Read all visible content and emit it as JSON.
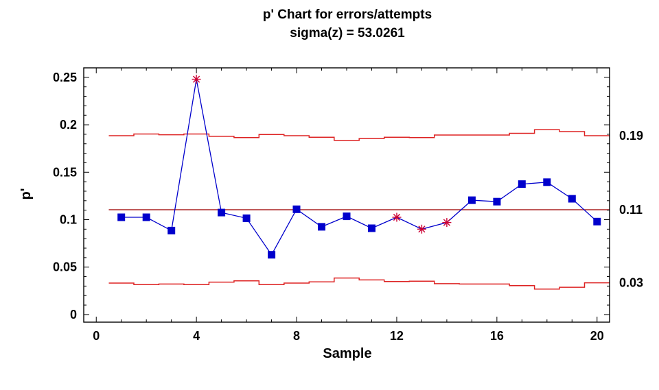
{
  "chart_data": {
    "type": "line",
    "title": "p' Chart for errors/attempts",
    "subtitle": "sigma(z) = 53.0261",
    "xlabel": "Sample",
    "ylabel": "p'",
    "xlim": [
      -0.5,
      20.5
    ],
    "ylim": [
      -0.008,
      0.26
    ],
    "x_ticks": [
      0,
      4,
      8,
      12,
      16,
      20
    ],
    "x_tick_labels": [
      "0",
      "4",
      "8",
      "12",
      "16",
      "20"
    ],
    "y_ticks": [
      0,
      0.05,
      0.1,
      0.15,
      0.2,
      0.25
    ],
    "y_tick_labels": [
      "0",
      "0.05",
      "0.1",
      "0.15",
      "0.2",
      "0.25"
    ],
    "grid": false,
    "center_line": 0.1105,
    "right_labels": [
      {
        "value": 0.1885,
        "text": "0.19"
      },
      {
        "value": 0.1105,
        "text": "0.11"
      },
      {
        "value": 0.0335,
        "text": "0.03"
      }
    ],
    "ucl": [
      0.1885,
      0.1903,
      0.1895,
      0.1903,
      0.1878,
      0.1865,
      0.1898,
      0.1885,
      0.1868,
      0.1835,
      0.1855,
      0.1868,
      0.1865,
      0.1892,
      0.1892,
      0.1892,
      0.191,
      0.1948,
      0.1928,
      0.1885
    ],
    "lcl": [
      0.0332,
      0.0315,
      0.0322,
      0.0315,
      0.0342,
      0.0355,
      0.0315,
      0.0332,
      0.0345,
      0.0385,
      0.0365,
      0.0348,
      0.0352,
      0.0325,
      0.0322,
      0.0322,
      0.0305,
      0.0268,
      0.0288,
      0.0335
    ],
    "series": [
      {
        "color": "#0000cc",
        "x": [
          1,
          2,
          3,
          4,
          5,
          6,
          7,
          8,
          9,
          10,
          11,
          12,
          13,
          14,
          15,
          16,
          17,
          18,
          19,
          20
        ],
        "values": [
          0.1025,
          0.1025,
          0.0885,
          0.248,
          0.1075,
          0.1015,
          0.063,
          0.111,
          0.0925,
          0.1035,
          0.091,
          0.1025,
          0.09,
          0.097,
          0.1205,
          0.119,
          0.1375,
          0.1395,
          0.122,
          0.098
        ],
        "flagged": [
          false,
          false,
          false,
          true,
          false,
          false,
          false,
          false,
          false,
          false,
          false,
          true,
          true,
          true,
          false,
          false,
          false,
          false,
          false,
          false
        ]
      }
    ],
    "colors": {
      "series": "#0000cc",
      "limits": "#dd2222",
      "center": "#aa2222",
      "flag": "#cc0033"
    }
  }
}
